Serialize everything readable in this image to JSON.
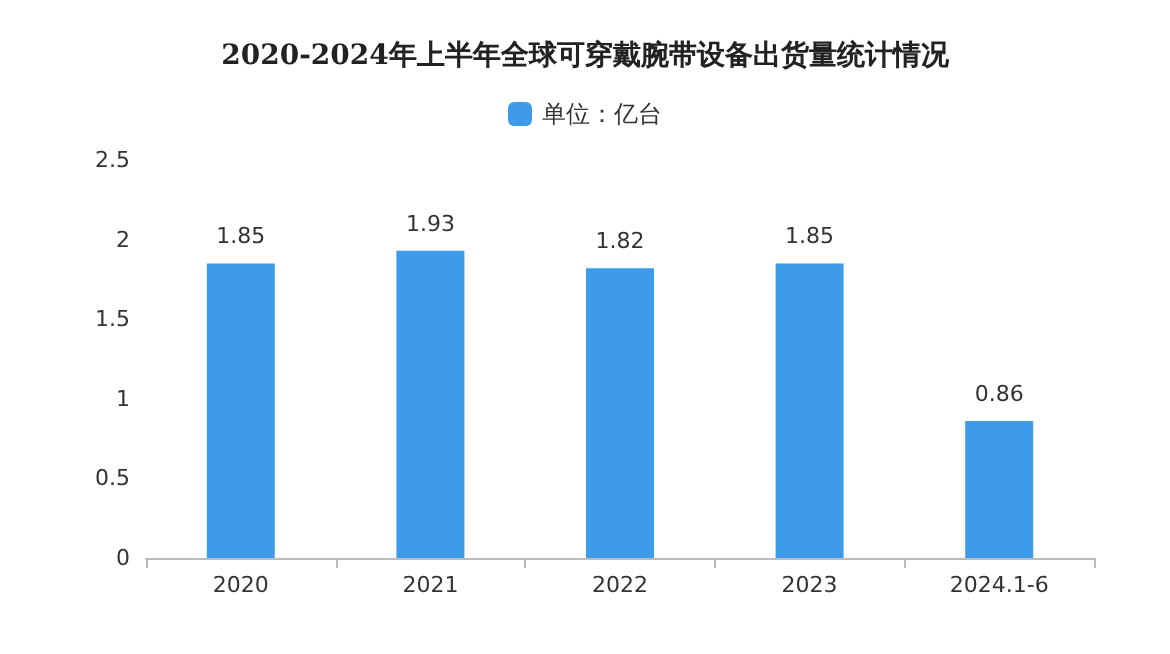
{
  "chart_data": {
    "type": "bar",
    "title": "2020-2024年上半年全球可穿戴腕带设备出货量统计情况",
    "categories": [
      "2020",
      "2021",
      "2022",
      "2023",
      "2024.1-6"
    ],
    "series": [
      {
        "name": "单位：亿台",
        "color": "#3d9be9",
        "values": [
          1.85,
          1.93,
          1.82,
          1.85,
          0.86
        ]
      }
    ],
    "ylim": [
      0,
      2.5
    ],
    "yticks": [
      0,
      0.5,
      1,
      1.5,
      2,
      2.5
    ],
    "grid": false,
    "legend": "top",
    "data_labels": true
  }
}
